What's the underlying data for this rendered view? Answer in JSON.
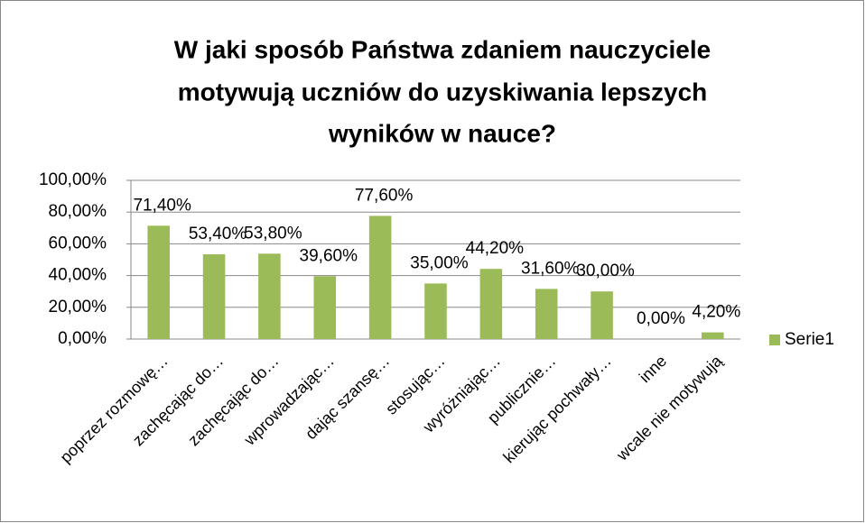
{
  "chart_data": {
    "type": "bar",
    "title": [
      "W jaki sposób Państwa zdaniem nauczyciele",
      "motywują uczniów do uzyskiwania lepszych",
      "wyników w nauce?"
    ],
    "categories": [
      "poprzez rozmowę…",
      "zachęcając do…",
      "zachęcając do…",
      "wprowadzając…",
      "dając szansę…",
      "stosując…",
      "wyróżniając…",
      "publicznie…",
      "kierując pochwały…",
      "inne",
      "wcale nie motywują"
    ],
    "series": [
      {
        "name": "Serie1",
        "color": "#9bbb59",
        "values": [
          71.4,
          53.4,
          53.8,
          39.6,
          77.6,
          35.0,
          44.2,
          31.6,
          30.0,
          0.0,
          4.2
        ],
        "value_labels": [
          "71,40%",
          "53,40%",
          "53,80%",
          "39,60%",
          "77,60%",
          "35,00%",
          "44,20%",
          "31,60%",
          "30,00%",
          "0,00%",
          "4,20%"
        ]
      }
    ],
    "ylim": [
      0,
      100
    ],
    "yticks": [
      {
        "value": 0,
        "label": "0,00%"
      },
      {
        "value": 20,
        "label": "20,00%"
      },
      {
        "value": 40,
        "label": "40,00%"
      },
      {
        "value": 60,
        "label": "60,00%"
      },
      {
        "value": 80,
        "label": "80,00%"
      },
      {
        "value": 100,
        "label": "100,00%"
      }
    ],
    "grid": true,
    "legend": "right"
  }
}
